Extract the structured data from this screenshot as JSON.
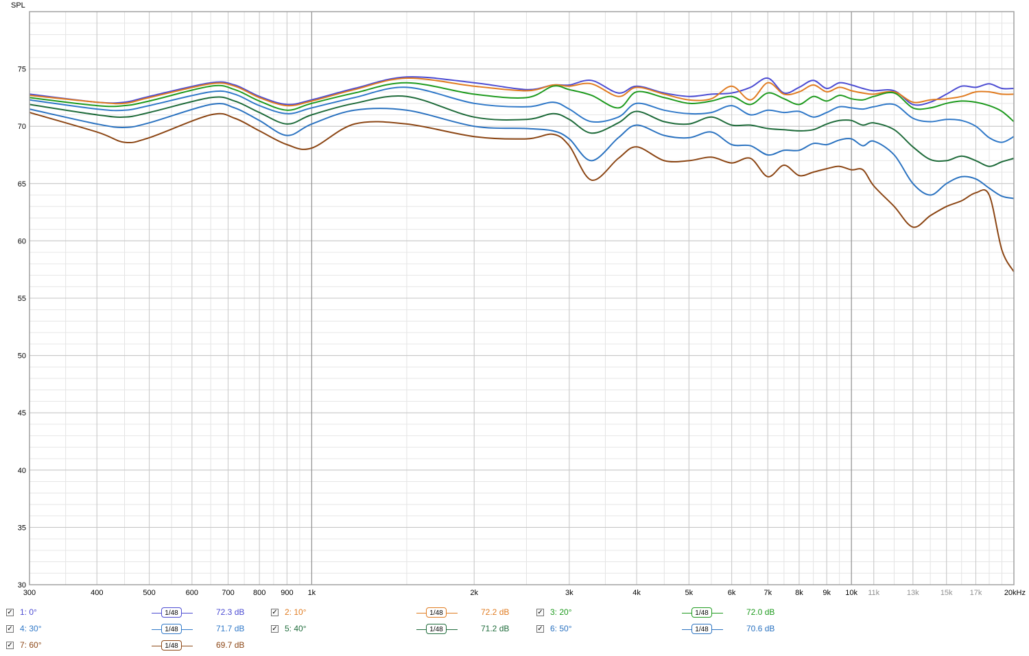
{
  "chart_data": {
    "type": "line",
    "ylabel": "SPL",
    "xscale": "log",
    "xlim": [
      300,
      20000
    ],
    "ylim": [
      30,
      80
    ],
    "grid": true,
    "x_ticks": [
      {
        "v": 300,
        "label": "300"
      },
      {
        "v": 400,
        "label": "400"
      },
      {
        "v": 500,
        "label": "500"
      },
      {
        "v": 600,
        "label": "600"
      },
      {
        "v": 700,
        "label": "700"
      },
      {
        "v": 800,
        "label": "800"
      },
      {
        "v": 900,
        "label": "900"
      },
      {
        "v": 1000,
        "label": "1k"
      },
      {
        "v": 2000,
        "label": "2k"
      },
      {
        "v": 3000,
        "label": "3k"
      },
      {
        "v": 4000,
        "label": "4k"
      },
      {
        "v": 5000,
        "label": "5k"
      },
      {
        "v": 6000,
        "label": "6k"
      },
      {
        "v": 7000,
        "label": "7k"
      },
      {
        "v": 8000,
        "label": "8k"
      },
      {
        "v": 9000,
        "label": "9k"
      },
      {
        "v": 10000,
        "label": "10k"
      },
      {
        "v": 11000,
        "label": "11k"
      },
      {
        "v": 13000,
        "label": "13k"
      },
      {
        "v": 15000,
        "label": "15k"
      },
      {
        "v": 17000,
        "label": "17k"
      },
      {
        "v": 20000,
        "label": "20kHz"
      }
    ],
    "y_ticks": [
      {
        "v": 30,
        "label": "30"
      },
      {
        "v": 35,
        "label": "35"
      },
      {
        "v": 40,
        "label": "40"
      },
      {
        "v": 45,
        "label": "45"
      },
      {
        "v": 50,
        "label": "50"
      },
      {
        "v": 55,
        "label": "55"
      },
      {
        "v": 60,
        "label": "60"
      },
      {
        "v": 65,
        "label": "65"
      },
      {
        "v": 70,
        "label": "70"
      },
      {
        "v": 75,
        "label": "75"
      }
    ],
    "x": [
      300,
      400,
      450,
      500,
      650,
      720,
      800,
      900,
      1000,
      1200,
      1500,
      2000,
      2500,
      2800,
      3000,
      3300,
      3700,
      4000,
      4500,
      5000,
      5500,
      6000,
      6500,
      7000,
      7500,
      8000,
      8500,
      9000,
      9500,
      10000,
      10500,
      11000,
      12000,
      13000,
      14000,
      15000,
      16000,
      17000,
      18000,
      19000,
      20000
    ],
    "series": [
      {
        "name": "1: 0°",
        "level": "72.3 dB",
        "smoothing": "1/48",
        "color": "#4b4bd2",
        "values": [
          72.8,
          72.1,
          72.1,
          72.6,
          73.8,
          73.6,
          72.6,
          71.9,
          72.3,
          73.3,
          74.3,
          73.8,
          73.2,
          73.6,
          73.6,
          74.0,
          72.9,
          73.5,
          72.9,
          72.6,
          72.8,
          72.9,
          73.4,
          74.2,
          72.9,
          73.4,
          74.0,
          73.3,
          73.8,
          73.6,
          73.3,
          73.1,
          73.1,
          71.9,
          72.1,
          72.8,
          73.5,
          73.4,
          73.7,
          73.3,
          73.3
        ]
      },
      {
        "name": "2: 10°",
        "level": "72.2 dB",
        "smoothing": "1/48",
        "color": "#e07b20",
        "values": [
          72.7,
          72.1,
          72.0,
          72.5,
          73.7,
          73.5,
          72.5,
          71.8,
          72.2,
          73.2,
          74.2,
          73.5,
          73.1,
          73.6,
          73.5,
          73.7,
          72.6,
          73.4,
          72.8,
          72.3,
          72.4,
          73.5,
          72.3,
          73.8,
          72.8,
          73.0,
          73.6,
          73.0,
          73.4,
          73.1,
          72.9,
          72.8,
          73.0,
          72.1,
          72.3,
          72.4,
          72.6,
          73.0,
          73.0,
          72.8,
          72.8
        ]
      },
      {
        "name": "3: 20°",
        "level": "72.0 dB",
        "smoothing": "1/48",
        "color": "#1e9a1e",
        "values": [
          72.5,
          71.8,
          71.8,
          72.2,
          73.5,
          73.2,
          72.2,
          71.4,
          72.0,
          72.9,
          73.8,
          72.8,
          72.5,
          73.5,
          73.2,
          72.7,
          71.6,
          73.0,
          72.5,
          72.0,
          72.2,
          72.6,
          71.9,
          72.9,
          72.4,
          71.9,
          72.6,
          72.2,
          72.7,
          72.4,
          72.3,
          72.6,
          72.9,
          71.6,
          71.6,
          72.0,
          72.2,
          72.1,
          71.8,
          71.3,
          70.4
        ]
      },
      {
        "name": "4: 30°",
        "level": "71.7 dB",
        "smoothing": "1/48",
        "color": "#2f78c8",
        "values": [
          72.3,
          71.5,
          71.4,
          71.8,
          73.0,
          72.8,
          71.8,
          71.1,
          71.6,
          72.5,
          73.4,
          72.0,
          71.7,
          72.1,
          71.5,
          70.4,
          70.8,
          72.0,
          71.4,
          71.1,
          71.2,
          71.8,
          71.0,
          71.4,
          71.2,
          71.3,
          70.8,
          71.2,
          71.7,
          71.6,
          71.5,
          71.7,
          71.9,
          70.7,
          70.4,
          70.6,
          70.5,
          70.0,
          69.0,
          68.6,
          69.1
        ]
      },
      {
        "name": "5: 40°",
        "level": "71.2 dB",
        "smoothing": "1/48",
        "color": "#1e6b3a",
        "values": [
          71.9,
          71.0,
          70.8,
          71.2,
          72.5,
          72.2,
          71.2,
          70.2,
          71.0,
          72.0,
          72.6,
          70.8,
          70.6,
          71.1,
          70.6,
          69.4,
          70.3,
          71.3,
          70.4,
          70.2,
          70.8,
          70.1,
          70.1,
          69.8,
          69.7,
          69.6,
          69.7,
          70.2,
          70.5,
          70.5,
          70.1,
          70.3,
          69.7,
          68.2,
          67.1,
          67.0,
          67.4,
          67.0,
          66.5,
          66.9,
          67.2
        ]
      },
      {
        "name": "6: 50°",
        "level": "70.6 dB",
        "smoothing": "1/48",
        "color": "#2a72c0",
        "values": [
          71.5,
          70.2,
          69.9,
          70.3,
          71.9,
          71.6,
          70.5,
          69.2,
          70.2,
          71.4,
          71.4,
          70.0,
          69.8,
          69.6,
          68.9,
          67.0,
          69.0,
          70.1,
          69.2,
          69.0,
          69.5,
          68.4,
          68.3,
          67.5,
          67.9,
          67.9,
          68.5,
          68.4,
          68.8,
          68.9,
          68.3,
          68.7,
          67.5,
          65.0,
          64.0,
          65.0,
          65.6,
          65.4,
          64.6,
          63.9,
          63.7
        ]
      },
      {
        "name": "7: 60°",
        "level": "69.7 dB",
        "smoothing": "1/48",
        "color": "#8b4513",
        "values": [
          71.2,
          69.5,
          68.6,
          69.0,
          71.0,
          70.7,
          69.6,
          68.4,
          68.1,
          70.2,
          70.2,
          69.1,
          68.9,
          69.3,
          68.3,
          65.3,
          67.2,
          68.2,
          67.0,
          67.0,
          67.3,
          66.8,
          67.2,
          65.6,
          66.6,
          65.7,
          66.0,
          66.3,
          66.5,
          66.2,
          66.2,
          64.8,
          63.0,
          61.2,
          62.2,
          63.0,
          63.5,
          64.2,
          64.0,
          59.2,
          57.3
        ]
      }
    ]
  },
  "legend": {
    "check_glyph": "✓",
    "items": [
      {
        "name": "1: 0°",
        "smoothing": "1/48",
        "level": "72.3 dB",
        "color": "#4b4bd2"
      },
      {
        "name": "2: 10°",
        "smoothing": "1/48",
        "level": "72.2 dB",
        "color": "#e07b20"
      },
      {
        "name": "3: 20°",
        "smoothing": "1/48",
        "level": "72.0 dB",
        "color": "#1e9a1e"
      },
      {
        "name": "4: 30°",
        "smoothing": "1/48",
        "level": "71.7 dB",
        "color": "#2f78c8"
      },
      {
        "name": "5: 40°",
        "smoothing": "1/48",
        "level": "71.2 dB",
        "color": "#1e6b3a"
      },
      {
        "name": "6: 50°",
        "smoothing": "1/48",
        "level": "70.6 dB",
        "color": "#2a72c0"
      },
      {
        "name": "7: 60°",
        "smoothing": "1/48",
        "level": "69.7 dB",
        "color": "#8b4513"
      }
    ]
  }
}
